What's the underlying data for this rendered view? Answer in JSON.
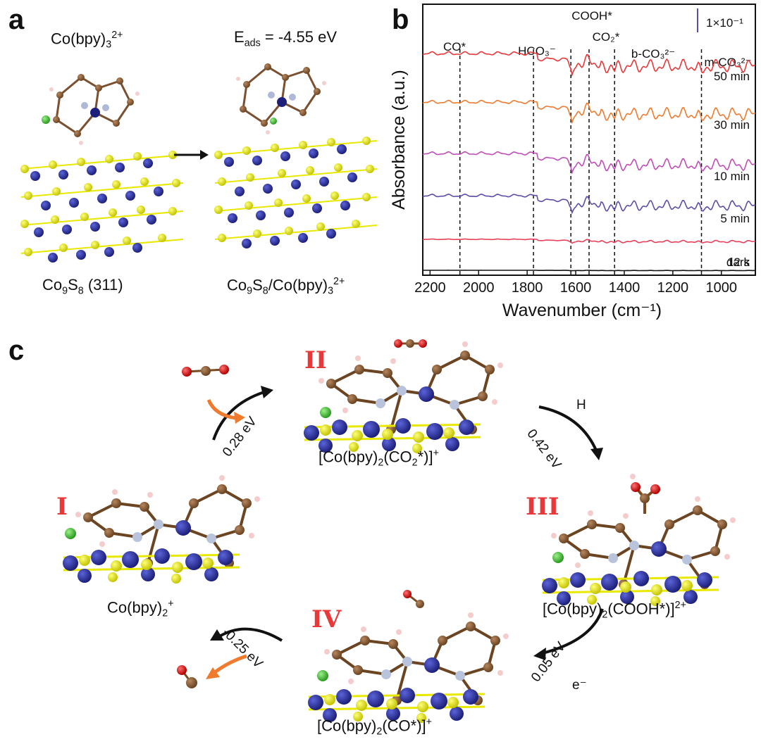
{
  "panels": {
    "a": "a",
    "b": "b",
    "c": "c"
  },
  "panel_a": {
    "complex_label": "Co(bpy)",
    "complex_sub": "3",
    "complex_sup": "2+",
    "eads_prefix": "E",
    "eads_sub": "ads",
    "eads_value": " = -4.55 eV",
    "substrate_label": "Co",
    "substrate_sub1": "9",
    "substrate_mid": "S",
    "substrate_sub2": "8",
    "substrate_facet": " (311)",
    "hybrid_label": "Co",
    "hybrid_sub1": "9",
    "hybrid_mid": "S",
    "hybrid_sub2": "8",
    "hybrid_rest": "/Co(bpy)",
    "hybrid_sub3": "3",
    "hybrid_sup": "2+"
  },
  "chart_data": {
    "type": "line",
    "ylabel": "Absorbance (a.u.)",
    "xlabel": "Wavenumber (cm⁻¹)",
    "xlim": [
      2230,
      860
    ],
    "x_ticks": [
      2200,
      2000,
      1800,
      1600,
      1400,
      1200,
      1000
    ],
    "scale_bar_label": "1×10⁻¹",
    "markers": [
      {
        "label": "CO*",
        "x": 2077
      },
      {
        "label": "HCO₃⁻",
        "x": 1774
      },
      {
        "label": "COOH*",
        "x": 1620
      },
      {
        "label": "CO₂*",
        "x": 1545
      },
      {
        "label": "b-CO₃²⁻",
        "x": 1440
      },
      {
        "label": "m-CO₃²⁻",
        "x": 1082
      }
    ],
    "series": [
      {
        "name": "50 min",
        "color": "#e8383a"
      },
      {
        "name": "30 min",
        "color": "#f07a2e"
      },
      {
        "name": "10 min",
        "color": "#c04db8"
      },
      {
        "name": "5 min",
        "color": "#5a4fa8"
      },
      {
        "name": "12 s",
        "color": "#e8405a"
      },
      {
        "name": "dark",
        "color": "#111111"
      }
    ]
  },
  "panel_c": {
    "stages": [
      {
        "numeral": "I",
        "formula": "Co(bpy)",
        "sub": "2",
        "sup": "+"
      },
      {
        "numeral": "II",
        "formula": "[Co(bpy)",
        "sub": "2",
        "rest": "(CO",
        "rest_sub": "2",
        "tail": "*)]",
        "sup": "+"
      },
      {
        "numeral": "III",
        "formula": "[Co(bpy)",
        "sub": "2",
        "rest": "(COOH*)]",
        "sup": "2+"
      },
      {
        "numeral": "IV",
        "formula": "[Co(bpy)",
        "sub": "2",
        "rest": "(CO*)]",
        "sup": "+"
      }
    ],
    "steps": [
      {
        "energy": "0.28 eV"
      },
      {
        "energy": "0.42 eV",
        "reagent": "H"
      },
      {
        "energy": "0.05 eV",
        "reagent": "e⁻"
      },
      {
        "energy": "-0.25 eV"
      }
    ]
  }
}
